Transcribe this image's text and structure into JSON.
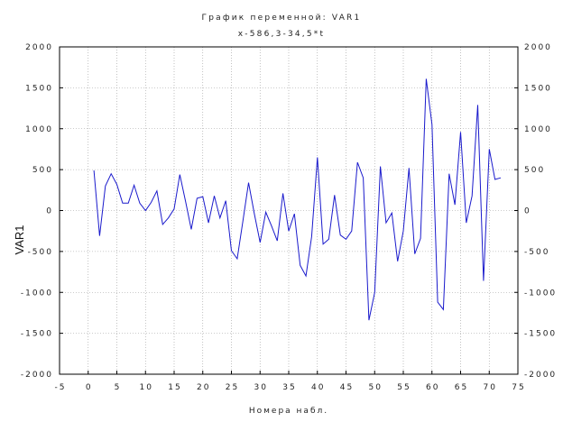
{
  "chart_data": {
    "type": "line",
    "title": "График переменной: VAR1",
    "subtitle": "x-586,3-34,5*t",
    "xlabel": "Номера набл.",
    "ylabel": "VAR1",
    "xlim": [
      -5,
      75
    ],
    "ylim": [
      -2000,
      2000
    ],
    "x_ticks": [
      -5,
      0,
      5,
      10,
      15,
      20,
      25,
      30,
      35,
      40,
      45,
      50,
      55,
      60,
      65,
      70,
      75
    ],
    "y_ticks": [
      -2000,
      -1500,
      -1000,
      -500,
      0,
      500,
      1000,
      1500,
      2000
    ],
    "grid": true,
    "line_color": "#1a1acc",
    "series": [
      {
        "x": [
          1,
          2,
          3,
          4,
          5,
          6,
          7,
          8,
          9,
          10,
          11,
          12,
          13,
          14,
          15,
          16,
          17,
          18,
          19,
          20,
          21,
          22,
          23,
          24,
          25,
          26,
          27,
          28,
          29,
          30,
          31,
          32,
          33,
          34,
          35,
          36,
          37,
          38,
          39,
          40,
          41,
          42,
          43,
          44,
          45,
          46,
          47,
          48,
          49,
          50,
          51,
          52,
          53,
          54,
          55,
          56,
          57,
          58,
          59,
          60,
          61,
          62,
          63,
          64,
          65,
          66,
          67,
          68,
          69,
          70,
          71,
          72
        ],
        "values": [
          490,
          -310,
          300,
          450,
          320,
          90,
          90,
          310,
          90,
          0,
          100,
          240,
          -170,
          -90,
          20,
          440,
          110,
          -230,
          150,
          170,
          -150,
          180,
          -90,
          120,
          -490,
          -590,
          -130,
          340,
          -40,
          -390,
          -20,
          -190,
          -370,
          210,
          -250,
          -40,
          -670,
          -800,
          -320,
          650,
          -410,
          -350,
          190,
          -300,
          -350,
          -250,
          590,
          400,
          -1340,
          -1000,
          540,
          -150,
          -30,
          -620,
          -250,
          520,
          -530,
          -340,
          1610,
          1050,
          -1120,
          -1210,
          450,
          70,
          960,
          -150,
          180,
          1290,
          -860,
          750,
          380,
          400
        ]
      }
    ]
  }
}
